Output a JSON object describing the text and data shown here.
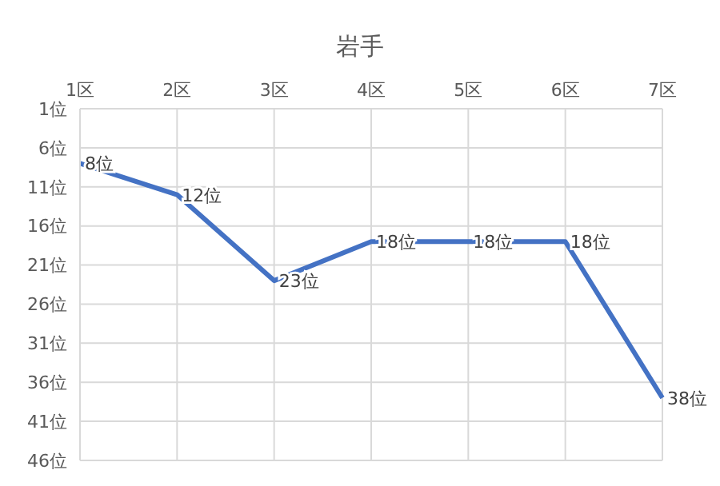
{
  "chart_data": {
    "type": "line",
    "title": "岩手",
    "categories": [
      "1区",
      "2区",
      "3区",
      "4区",
      "5区",
      "6区",
      "7区"
    ],
    "series": [
      {
        "color": "#4472c4",
        "values": [
          8,
          12,
          23,
          18,
          18,
          18,
          38
        ],
        "value_labels": [
          "8位",
          "12位",
          "23位",
          "18位",
          "18位",
          "18位",
          "38位"
        ]
      }
    ],
    "ylim": [
      46,
      1
    ],
    "yticks": [
      {
        "value": 1,
        "label": "1位"
      },
      {
        "value": 6,
        "label": "6位"
      },
      {
        "value": 11,
        "label": "11位"
      },
      {
        "value": 16,
        "label": "16位"
      },
      {
        "value": 21,
        "label": "21位"
      },
      {
        "value": 26,
        "label": "26位"
      },
      {
        "value": 31,
        "label": "31位"
      },
      {
        "value": 36,
        "label": "36位"
      },
      {
        "value": 41,
        "label": "41位"
      },
      {
        "value": 46,
        "label": "46位"
      }
    ],
    "grid": true,
    "marker": "none",
    "line_style": "solid",
    "legend": false
  }
}
